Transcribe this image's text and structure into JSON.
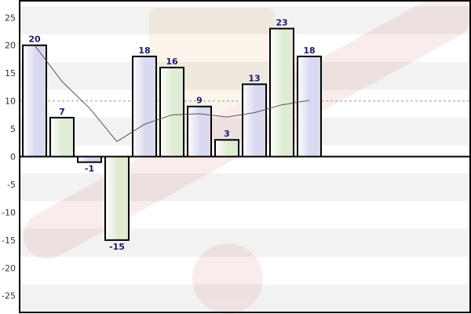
{
  "chart_data": {
    "type": "bar",
    "title": "",
    "xlabel": "",
    "ylabel": "",
    "ylim": [
      -28,
      28
    ],
    "yticks": [
      -25,
      -20,
      -15,
      -10,
      -5,
      0,
      5,
      10,
      15,
      20,
      25
    ],
    "values": [
      20,
      7,
      -1,
      -15,
      18,
      16,
      9,
      3,
      13,
      23,
      18
    ],
    "data_labels": [
      "20",
      "7",
      "-1",
      "-15",
      "18",
      "16",
      "9",
      "3",
      "13",
      "23",
      "18"
    ],
    "bar_colors": [
      "#d9d9ef",
      "#dfebd3",
      "#d9d9ef",
      "#dfebd3",
      "#d9d9ef",
      "#dfebd3",
      "#d9d9ef",
      "#dfebd3",
      "#d9d9ef",
      "#dfebd3",
      "#d9d9ef"
    ],
    "reference_line": {
      "value": 10,
      "style": "dashed"
    },
    "trend_line": [
      20,
      13.5,
      8.7,
      2.7,
      5.8,
      7.5,
      7.7,
      7.1,
      7.9,
      9.3,
      10.1
    ],
    "grid": "horizontal-bands",
    "legend": "none"
  },
  "colors": {
    "bar_border": "#000000",
    "label": "#1a1a6e",
    "band": "#f2f2f2",
    "reference": "#999999",
    "trend": "#555555"
  }
}
